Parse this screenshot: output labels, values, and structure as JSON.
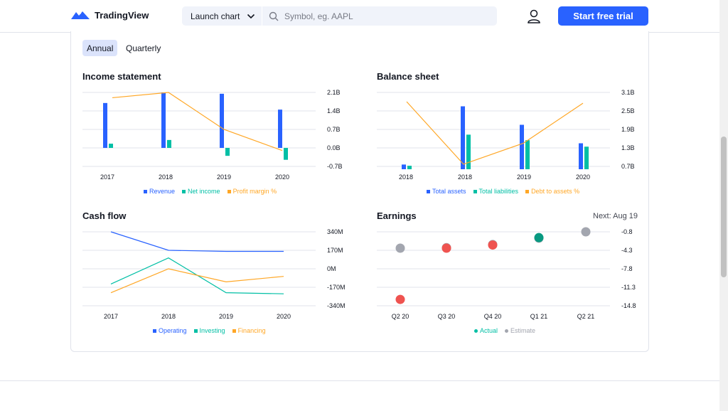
{
  "header": {
    "logo_text": "TradingView",
    "launch_label": "Launch chart",
    "search_placeholder": "Symbol, eg. AAPL",
    "trial_label": "Start free trial"
  },
  "period_toggle": {
    "annual": "Annual",
    "quarterly": "Quarterly",
    "selected": "Annual"
  },
  "colors": {
    "blue": "#2962ff",
    "teal": "#00bfa5",
    "orange": "#ffa726",
    "red": "#ef5350",
    "green": "#089981",
    "gray": "#a3a6af"
  },
  "charts": [
    {
      "id": "income",
      "title": "Income statement",
      "categories": [
        "2017",
        "2018",
        "2019",
        "2020"
      ],
      "y_ticks": [
        "2.1B",
        "1.4B",
        "0.7B",
        "0.0B",
        "-0.7B"
      ],
      "legend": [
        "Revenue",
        "Net income",
        "Profit margin %"
      ]
    },
    {
      "id": "balance",
      "title": "Balance sheet",
      "categories": [
        "2018",
        "2018",
        "2019",
        "2020"
      ],
      "y_ticks": [
        "3.1B",
        "2.5B",
        "1.9B",
        "1.3B",
        "0.7B"
      ],
      "legend": [
        "Total assets",
        "Total liabilities",
        "Debt to assets %"
      ]
    },
    {
      "id": "cashflow",
      "title": "Cash flow",
      "categories": [
        "2017",
        "2018",
        "2019",
        "2020"
      ],
      "y_ticks": [
        "340M",
        "170M",
        "0M",
        "-170M",
        "-340M"
      ],
      "legend": [
        "Operating",
        "Investing",
        "Financing"
      ]
    },
    {
      "id": "earnings",
      "title": "Earnings",
      "next_label": "Next: Aug 19",
      "categories": [
        "Q2 20",
        "Q3 20",
        "Q4 20",
        "Q1 21",
        "Q2 21"
      ],
      "y_ticks": [
        "-0.8",
        "-4.3",
        "-7.8",
        "-11.3",
        "-14.8"
      ],
      "legend": [
        "Actual",
        "Estimate"
      ]
    }
  ],
  "chart_data": [
    {
      "type": "bar",
      "title": "Income statement",
      "categories": [
        "2017",
        "2018",
        "2019",
        "2020"
      ],
      "ylim": [
        -0.7,
        2.1
      ],
      "series": [
        {
          "name": "Revenue",
          "values": [
            1.7,
            2.1,
            2.05,
            1.45
          ]
        },
        {
          "name": "Net income",
          "values": [
            0.16,
            0.3,
            -0.3,
            -0.45
          ]
        },
        {
          "name": "Profit margin %",
          "type": "line",
          "values": [
            1.9,
            2.1,
            0.7,
            -0.1
          ]
        }
      ]
    },
    {
      "type": "bar",
      "title": "Balance sheet",
      "categories": [
        "2018",
        "2018",
        "2019",
        "2020"
      ],
      "ylim": [
        0.7,
        3.1
      ],
      "series": [
        {
          "name": "Total assets",
          "values": [
            0.76,
            2.65,
            2.05,
            1.45
          ]
        },
        {
          "name": "Total liabilities",
          "values": [
            0.72,
            1.73,
            1.55,
            1.34
          ]
        },
        {
          "name": "Debt to assets %",
          "type": "line",
          "values": [
            2.8,
            0.77,
            1.45,
            2.75
          ]
        }
      ]
    },
    {
      "type": "line",
      "title": "Cash flow",
      "categories": [
        "2017",
        "2018",
        "2019",
        "2020"
      ],
      "ylim": [
        -340,
        340
      ],
      "series": [
        {
          "name": "Operating",
          "values": [
            340,
            170,
            160,
            160
          ]
        },
        {
          "name": "Investing",
          "values": [
            -140,
            100,
            -220,
            -230
          ]
        },
        {
          "name": "Financing",
          "values": [
            -220,
            0,
            -120,
            -70
          ]
        }
      ]
    },
    {
      "type": "scatter",
      "title": "Earnings",
      "categories": [
        "Q2 20",
        "Q3 20",
        "Q4 20",
        "Q1 21",
        "Q2 21"
      ],
      "ylim": [
        -14.8,
        -0.8
      ],
      "series": [
        {
          "name": "Actual",
          "values": [
            -13.6,
            -3.9,
            -3.3,
            -1.9,
            null
          ],
          "colors": [
            "#ef5350",
            "#ef5350",
            "#ef5350",
            "#089981",
            null
          ]
        },
        {
          "name": "Estimate",
          "values": [
            -3.9,
            -3.8,
            -3.2,
            -2.0,
            -0.8
          ]
        }
      ]
    }
  ]
}
